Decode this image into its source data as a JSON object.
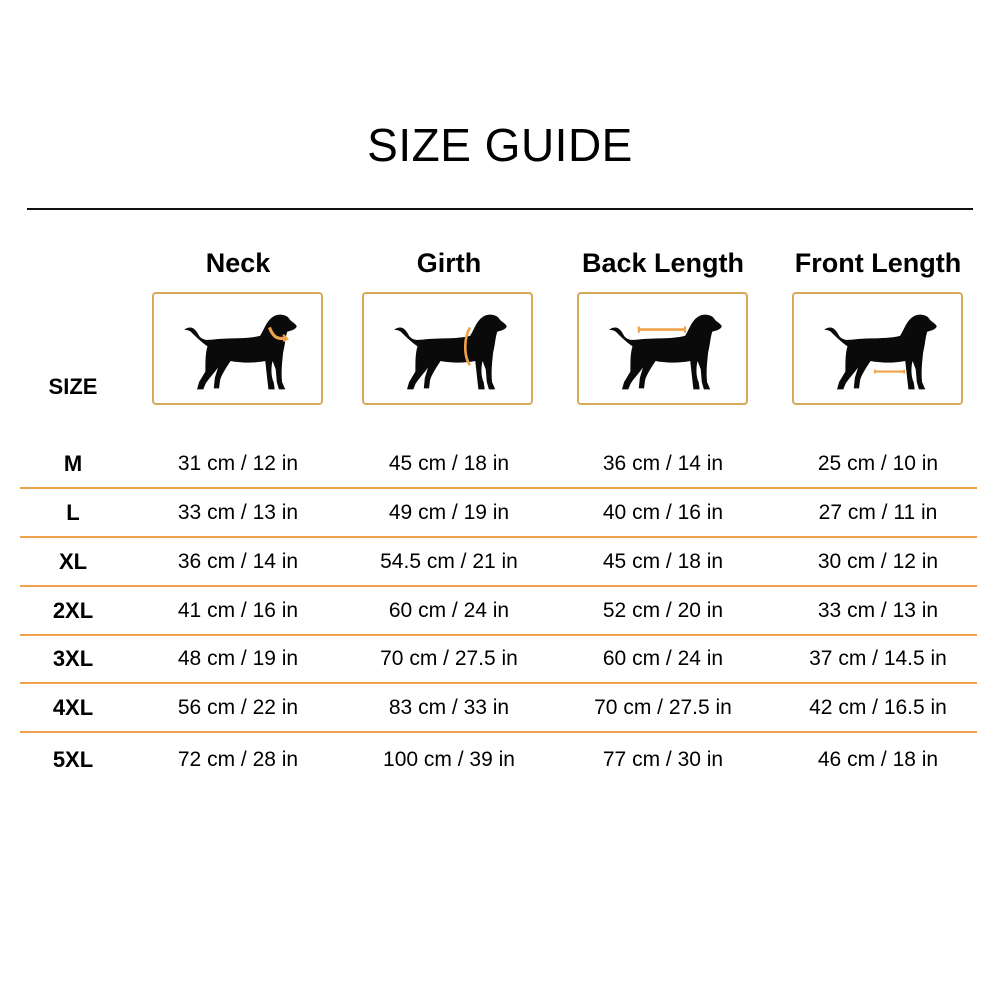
{
  "title": "SIZE GUIDE",
  "size_label": "SIZE",
  "accent_color": "#f0a24a",
  "columns": [
    {
      "label": "Neck",
      "icon": "dog-neck-measure-icon"
    },
    {
      "label": "Girth",
      "icon": "dog-girth-measure-icon"
    },
    {
      "label": "Back Length",
      "icon": "dog-back-length-measure-icon"
    },
    {
      "label": "Front Length",
      "icon": "dog-front-length-measure-icon"
    }
  ],
  "rows": [
    {
      "size": "M",
      "values": [
        "31 cm / 12 in",
        "45 cm / 18 in",
        "36 cm / 14 in",
        "25 cm / 10 in"
      ]
    },
    {
      "size": "L",
      "values": [
        "33 cm / 13 in",
        "49 cm / 19 in",
        "40 cm / 16 in",
        "27 cm / 11 in"
      ]
    },
    {
      "size": "XL",
      "values": [
        "36 cm / 14 in",
        "54.5 cm / 21 in",
        "45 cm / 18 in",
        "30 cm / 12 in"
      ]
    },
    {
      "size": "2XL",
      "values": [
        "41 cm / 16 in",
        "60 cm / 24 in",
        "52 cm / 20 in",
        "33 cm / 13 in"
      ]
    },
    {
      "size": "3XL",
      "values": [
        "48 cm / 19 in",
        "70 cm / 27.5 in",
        "60 cm / 24 in",
        "37 cm / 14.5 in"
      ]
    },
    {
      "size": "4XL",
      "values": [
        "56 cm / 22 in",
        "83 cm / 33 in",
        "70 cm / 27.5 in",
        "42 cm / 16.5 in"
      ]
    },
    {
      "size": "5XL",
      "values": [
        "72 cm / 28 in",
        "100 cm / 39 in",
        "77 cm / 30 in",
        "46 cm / 18 in"
      ]
    }
  ]
}
